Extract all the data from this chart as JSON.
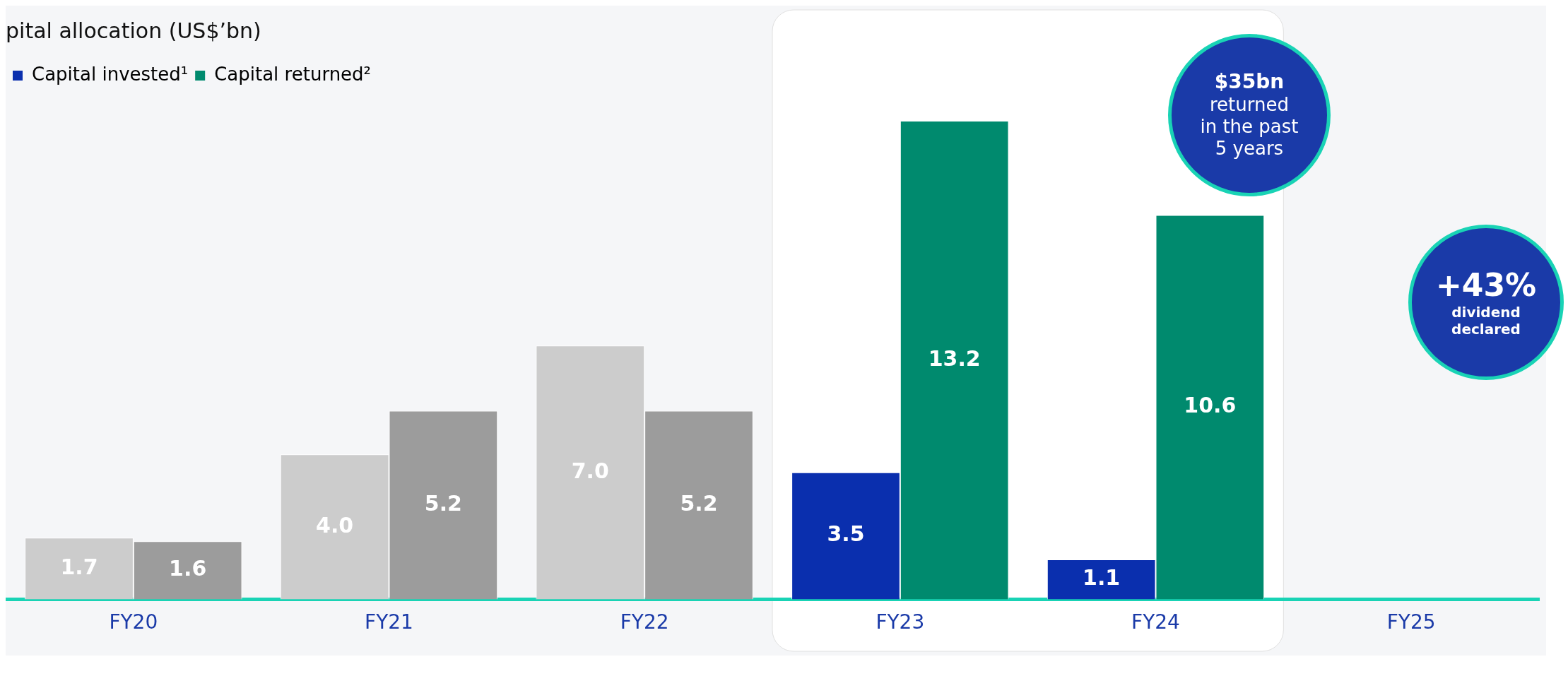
{
  "chart_data": {
    "type": "bar",
    "title": "pital allocation (US$’bn)",
    "categories": [
      "FY20",
      "FY21",
      "FY22",
      "FY23",
      "FY24",
      "FY25"
    ],
    "series": [
      {
        "name": "Capital invested¹",
        "color": "#0a2fae",
        "colors": [
          "#cccccc",
          "#cccccc",
          "#cccccc",
          "#0a2fae",
          "#0a2fae",
          null
        ],
        "values": [
          1.7,
          4.0,
          7.0,
          3.5,
          1.1,
          null
        ],
        "value_labels": [
          "1.7",
          "4.0",
          "7.0",
          "3.5",
          "1.1",
          null
        ]
      },
      {
        "name": "Capital returned²",
        "color": "#008a6e",
        "colors": [
          "#9c9c9c",
          "#9c9c9c",
          "#9c9c9c",
          "#008a6e",
          "#008a6e",
          null
        ],
        "values": [
          1.6,
          5.2,
          5.2,
          13.2,
          10.6,
          null
        ],
        "value_labels": [
          "1.6",
          "5.2",
          "5.2",
          "13.2",
          "10.6",
          null
        ]
      }
    ],
    "data_labels": true,
    "legend": "top left",
    "grid": false,
    "bands": [
      {
        "axis": "x",
        "from": "FY23",
        "to": "FY24",
        "color": "#ffffff"
      }
    ],
    "annotations": [
      "$35bn\nreturned\nin the past\n5 years",
      "+43%\ndividend\ndeclared"
    ]
  }
}
